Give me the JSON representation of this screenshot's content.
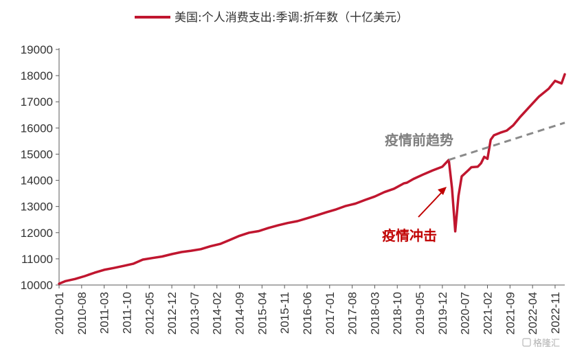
{
  "chart_data": {
    "type": "line",
    "legend": {
      "position": "top-center"
    },
    "series": [
      {
        "name": "美国:个人消费支出:季调:折年数（十亿美元）",
        "color": "#c0162f",
        "points": [
          [
            "2010-01",
            10050
          ],
          [
            "2010-03",
            10150
          ],
          [
            "2010-06",
            10230
          ],
          [
            "2010-09",
            10340
          ],
          [
            "2010-12",
            10470
          ],
          [
            "2011-03",
            10580
          ],
          [
            "2011-06",
            10650
          ],
          [
            "2011-09",
            10730
          ],
          [
            "2011-12",
            10810
          ],
          [
            "2012-03",
            10970
          ],
          [
            "2012-06",
            11030
          ],
          [
            "2012-09",
            11090
          ],
          [
            "2012-12",
            11180
          ],
          [
            "2013-03",
            11260
          ],
          [
            "2013-06",
            11310
          ],
          [
            "2013-09",
            11370
          ],
          [
            "2013-12",
            11480
          ],
          [
            "2014-03",
            11570
          ],
          [
            "2014-06",
            11720
          ],
          [
            "2014-09",
            11880
          ],
          [
            "2014-12",
            12000
          ],
          [
            "2015-03",
            12060
          ],
          [
            "2015-06",
            12180
          ],
          [
            "2015-09",
            12280
          ],
          [
            "2015-12",
            12370
          ],
          [
            "2016-03",
            12440
          ],
          [
            "2016-06",
            12550
          ],
          [
            "2016-09",
            12660
          ],
          [
            "2016-12",
            12780
          ],
          [
            "2017-03",
            12890
          ],
          [
            "2017-06",
            13020
          ],
          [
            "2017-09",
            13110
          ],
          [
            "2017-12",
            13250
          ],
          [
            "2018-03",
            13380
          ],
          [
            "2018-06",
            13550
          ],
          [
            "2018-09",
            13680
          ],
          [
            "2018-12",
            13880
          ],
          [
            "2019-01",
            13910
          ],
          [
            "2019-03",
            14050
          ],
          [
            "2019-06",
            14220
          ],
          [
            "2019-09",
            14380
          ],
          [
            "2019-12",
            14520
          ],
          [
            "2020-02",
            14780
          ],
          [
            "2020-03",
            13700
          ],
          [
            "2020-04",
            12050
          ],
          [
            "2020-05",
            13400
          ],
          [
            "2020-06",
            14150
          ],
          [
            "2020-08",
            14380
          ],
          [
            "2020-09",
            14500
          ],
          [
            "2020-11",
            14520
          ],
          [
            "2020-12",
            14650
          ],
          [
            "2021-01",
            14900
          ],
          [
            "2021-02",
            14820
          ],
          [
            "2021-03",
            15550
          ],
          [
            "2021-04",
            15720
          ],
          [
            "2021-06",
            15820
          ],
          [
            "2021-08",
            15900
          ],
          [
            "2021-10",
            16100
          ],
          [
            "2021-12",
            16400
          ],
          [
            "2022-03",
            16800
          ],
          [
            "2022-06",
            17200
          ],
          [
            "2022-09",
            17500
          ],
          [
            "2022-11",
            17800
          ],
          [
            "2023-01",
            17700
          ],
          [
            "2023-02",
            18050
          ]
        ]
      },
      {
        "name": "疫情前趋势",
        "color": "#8a8a8a",
        "dashed": true,
        "points": [
          [
            "2020-02",
            14780
          ],
          [
            "2023-02",
            16200
          ]
        ]
      }
    ],
    "y_axis": {
      "range": [
        10000,
        19000
      ],
      "ticks": [
        10000,
        11000,
        12000,
        13000,
        14000,
        15000,
        16000,
        17000,
        18000,
        19000
      ],
      "tick_labels": [
        "10000",
        "11000",
        "12000",
        "13000",
        "14000",
        "15000",
        "16000",
        "17000",
        "18000",
        "19000"
      ]
    },
    "x_axis": {
      "range": [
        "2010-01",
        "2023-02"
      ],
      "tick_labels": [
        "2010-01",
        "2010-08",
        "2011-03",
        "2011-10",
        "2012-05",
        "2012-12",
        "2013-07",
        "2014-02",
        "2014-09",
        "2015-04",
        "2015-11",
        "2016-06",
        "2017-01",
        "2017-08",
        "2018-03",
        "2018-10",
        "2019-05",
        "2019-12",
        "2020-07",
        "2021-02",
        "2021-09",
        "2022-04",
        "2022-11"
      ]
    },
    "annotations": [
      {
        "text": "疫情前趋势",
        "color": "#7f7f7f"
      },
      {
        "text": "疫情冲击",
        "color": "#c00000"
      }
    ],
    "watermark": "格隆汇",
    "grid": false
  }
}
